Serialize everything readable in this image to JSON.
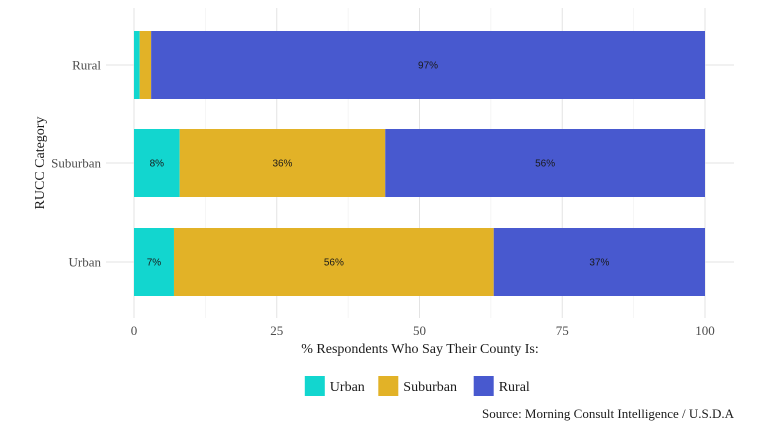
{
  "chart_data": {
    "type": "bar",
    "orientation": "horizontal",
    "stacked": true,
    "categories": [
      "Rural",
      "Suburban",
      "Urban"
    ],
    "series": [
      {
        "name": "Urban",
        "color": "#12d6cf",
        "values": [
          1,
          8,
          7
        ],
        "labels": [
          "",
          "8%",
          "7%"
        ]
      },
      {
        "name": "Suburban",
        "color": "#e2b227",
        "values": [
          2,
          36,
          56
        ],
        "labels": [
          "",
          "36%",
          "56%"
        ]
      },
      {
        "name": "Rural",
        "color": "#4859cf",
        "values": [
          97,
          56,
          37
        ],
        "labels": [
          "97%",
          "56%",
          "37%"
        ]
      }
    ],
    "xlabel": "% Respondents Who Say Their County Is:",
    "ylabel": "RUCC Category",
    "xlim": [
      0,
      100
    ],
    "xticks": [
      0,
      25,
      50,
      75,
      100
    ],
    "grid": true,
    "legend_position": "bottom",
    "caption": "Source: Morning Consult Intelligence / U.S.D.A"
  }
}
